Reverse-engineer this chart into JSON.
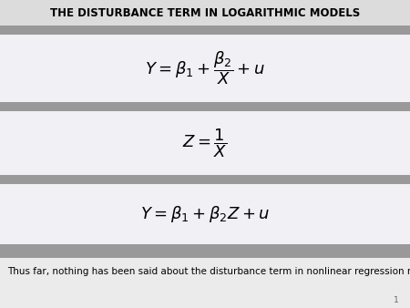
{
  "title": "THE DISTURBANCE TERM IN LOGARITHMIC MODELS",
  "title_fontsize": 8.5,
  "title_bg": "#dcdcdc",
  "white_bg": "#f0f0f5",
  "gray_bg": "#999999",
  "footer_bg": "#ebebeb",
  "footer_text": "Thus far, nothing has been said about the disturbance term in nonlinear regression models.",
  "footer_fontsize": 7.5,
  "page_number": "1",
  "eq1": "$Y = \\beta_1 + \\dfrac{\\beta_2}{X} + u$",
  "eq2": "$Z = \\dfrac{1}{X}$",
  "eq3": "$Y = \\beta_1 + \\beta_2 Z + u$",
  "eq_fontsize": 13,
  "fig_w": 4.5,
  "fig_h": 3.38,
  "dpi": 100
}
